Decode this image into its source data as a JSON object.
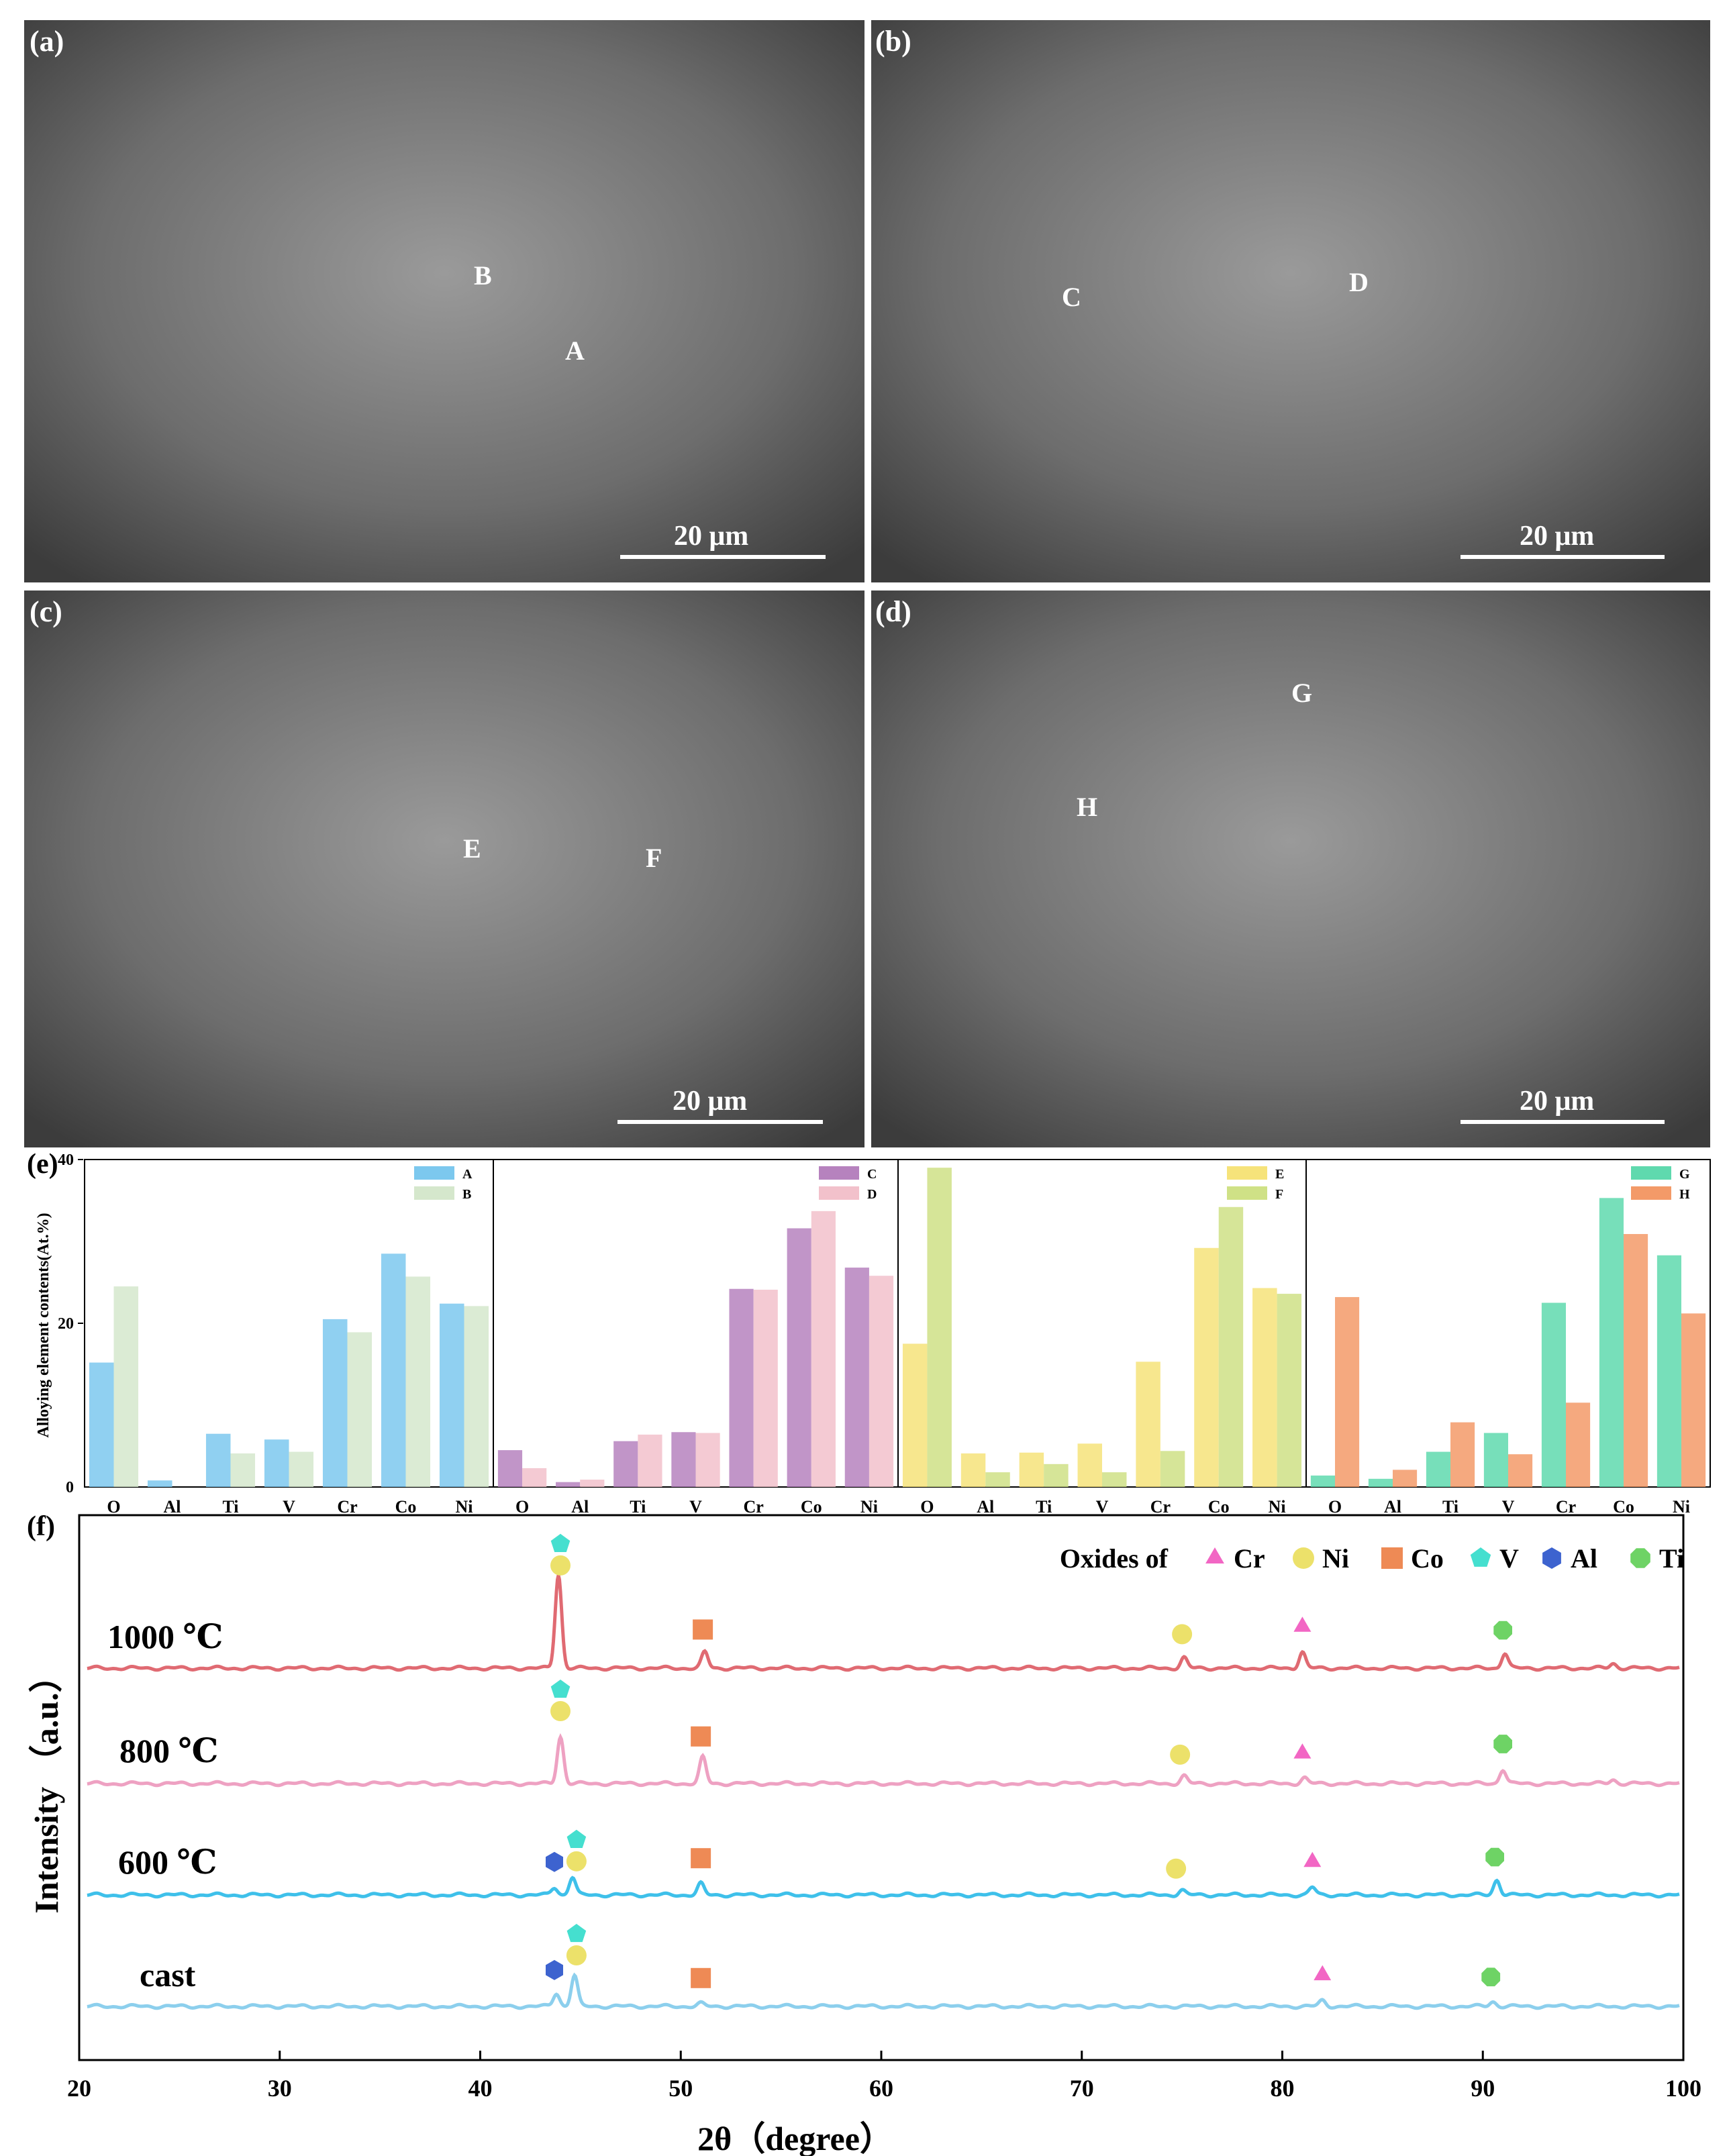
{
  "sem_panels": [
    {
      "tag": "(a)",
      "labels": [
        "B",
        "A"
      ],
      "scale_text": "20 μm"
    },
    {
      "tag": "(b)",
      "labels": [
        "C",
        "D"
      ],
      "scale_text": "20 μm"
    },
    {
      "tag": "(c)",
      "labels": [
        "E",
        "F"
      ],
      "scale_text": "20 μm"
    },
    {
      "tag": "(d)",
      "labels": [
        "G",
        "H"
      ],
      "scale_text": "20 μm"
    }
  ],
  "chart_data": [
    {
      "type": "bar",
      "panel_tag": "(e)",
      "ylabel": "Alloying element contents(At.%)",
      "ylim": [
        0,
        40
      ],
      "yticks": [
        "0",
        "20",
        "40"
      ],
      "categories": [
        "O",
        "Al",
        "Ti",
        "V",
        "Cr",
        "Co",
        "Ni"
      ],
      "groups": [
        {
          "series": [
            {
              "name": "A",
              "color": "#7cc8ee",
              "values": [
                15.2,
                0.8,
                6.5,
                5.8,
                20.5,
                28.5,
                22.4
              ]
            },
            {
              "name": "B",
              "color": "#d5e7cc",
              "values": [
                24.5,
                0,
                4.1,
                4.3,
                18.9,
                25.7,
                22.1
              ]
            }
          ]
        },
        {
          "series": [
            {
              "name": "C",
              "color": "#b682be",
              "values": [
                4.5,
                0.6,
                5.6,
                6.7,
                24.2,
                31.6,
                26.8
              ]
            },
            {
              "name": "D",
              "color": "#f2c1cb",
              "values": [
                2.3,
                0.9,
                6.4,
                6.6,
                24.1,
                33.7,
                25.8
              ]
            }
          ]
        },
        {
          "series": [
            {
              "name": "E",
              "color": "#f6e37a",
              "values": [
                17.5,
                4.1,
                4.2,
                5.3,
                15.3,
                29.2,
                24.3
              ]
            },
            {
              "name": "F",
              "color": "#cfe186",
              "values": [
                39.0,
                1.8,
                2.8,
                1.8,
                4.4,
                34.2,
                23.6
              ]
            }
          ]
        },
        {
          "series": [
            {
              "name": "G",
              "color": "#5fd9ae",
              "values": [
                1.4,
                1.0,
                4.3,
                6.6,
                22.5,
                35.3,
                28.3
              ]
            },
            {
              "name": "H",
              "color": "#f39a68",
              "values": [
                23.2,
                2.1,
                7.9,
                4.0,
                10.3,
                30.9,
                21.2
              ]
            }
          ]
        }
      ]
    },
    {
      "type": "line",
      "panel_tag": "(f)",
      "xlabel": "2θ（degree）",
      "ylabel": "Intensity （a.u.）",
      "xlim": [
        20,
        100
      ],
      "xticks": [
        "20",
        "30",
        "40",
        "50",
        "60",
        "70",
        "80",
        "90",
        "100"
      ],
      "legend_prefix": "Oxides of",
      "legend": [
        {
          "name": "Cr",
          "marker": "triangle",
          "color": "#f266c4"
        },
        {
          "name": "Ni",
          "marker": "circle",
          "color": "#ece16a"
        },
        {
          "name": "Co",
          "marker": "square",
          "color": "#ee8a55"
        },
        {
          "name": "V",
          "marker": "pentagon",
          "color": "#45dfcf"
        },
        {
          "name": "Al",
          "marker": "hexagon",
          "color": "#3d63cf"
        },
        {
          "name": "Ti",
          "marker": "octagon",
          "color": "#6ed365"
        }
      ],
      "series": [
        {
          "name": "1000 ℃",
          "color": "#e06a72",
          "peaks": [
            [
              43.9,
              1.0
            ],
            [
              51.2,
              0.17
            ],
            [
              75.1,
              0.11
            ],
            [
              81.0,
              0.17
            ],
            [
              91.1,
              0.16
            ],
            [
              96.5,
              0.05
            ]
          ],
          "markers": [
            {
              "x": 44.0,
              "marks": [
                "circle",
                "pentagon"
              ]
            },
            {
              "x": 51.1,
              "marks": [
                "square"
              ]
            },
            {
              "x": 75.0,
              "marks": [
                "circle"
              ]
            },
            {
              "x": 81.0,
              "marks": [
                "triangle"
              ]
            },
            {
              "x": 91.0,
              "marks": [
                "octagon"
              ]
            }
          ]
        },
        {
          "name": "800 ℃",
          "color": "#eea1c2",
          "peaks": [
            [
              44.0,
              0.5
            ],
            [
              51.1,
              0.28
            ],
            [
              75.1,
              0.08
            ],
            [
              81.1,
              0.06
            ],
            [
              91.0,
              0.15
            ],
            [
              96.5,
              0.04
            ]
          ],
          "markers": [
            {
              "x": 44.0,
              "marks": [
                "circle",
                "pentagon"
              ]
            },
            {
              "x": 51.0,
              "marks": [
                "square"
              ]
            },
            {
              "x": 74.9,
              "marks": [
                "circle"
              ]
            },
            {
              "x": 81.0,
              "marks": [
                "triangle"
              ]
            },
            {
              "x": 91.0,
              "marks": [
                "octagon"
              ]
            }
          ]
        },
        {
          "name": "600 ℃",
          "color": "#3ec0ea",
          "peaks": [
            [
              43.7,
              0.08
            ],
            [
              44.6,
              0.19
            ],
            [
              51.0,
              0.12
            ],
            [
              75.0,
              0.05
            ],
            [
              81.5,
              0.08
            ],
            [
              90.7,
              0.16
            ]
          ],
          "markers": [
            {
              "x": 43.7,
              "marks": [
                "hexagon"
              ]
            },
            {
              "x": 44.8,
              "marks": [
                "circle",
                "pentagon"
              ]
            },
            {
              "x": 51.0,
              "marks": [
                "square"
              ]
            },
            {
              "x": 74.7,
              "marks": [
                "circle"
              ]
            },
            {
              "x": 81.5,
              "marks": [
                "triangle"
              ]
            },
            {
              "x": 90.6,
              "marks": [
                "octagon"
              ]
            }
          ]
        },
        {
          "name": "cast",
          "color": "#8ccfed",
          "peaks": [
            [
              43.8,
              0.14
            ],
            [
              44.7,
              0.33
            ],
            [
              51.0,
              0.03
            ],
            [
              82.0,
              0.06
            ],
            [
              90.5,
              0.05
            ]
          ],
          "markers": [
            {
              "x": 43.7,
              "marks": [
                "hexagon"
              ]
            },
            {
              "x": 44.8,
              "marks": [
                "circle",
                "pentagon"
              ]
            },
            {
              "x": 51.0,
              "marks": [
                "square"
              ]
            },
            {
              "x": 82.0,
              "marks": [
                "triangle"
              ]
            },
            {
              "x": 90.4,
              "marks": [
                "octagon"
              ]
            }
          ]
        }
      ]
    }
  ]
}
